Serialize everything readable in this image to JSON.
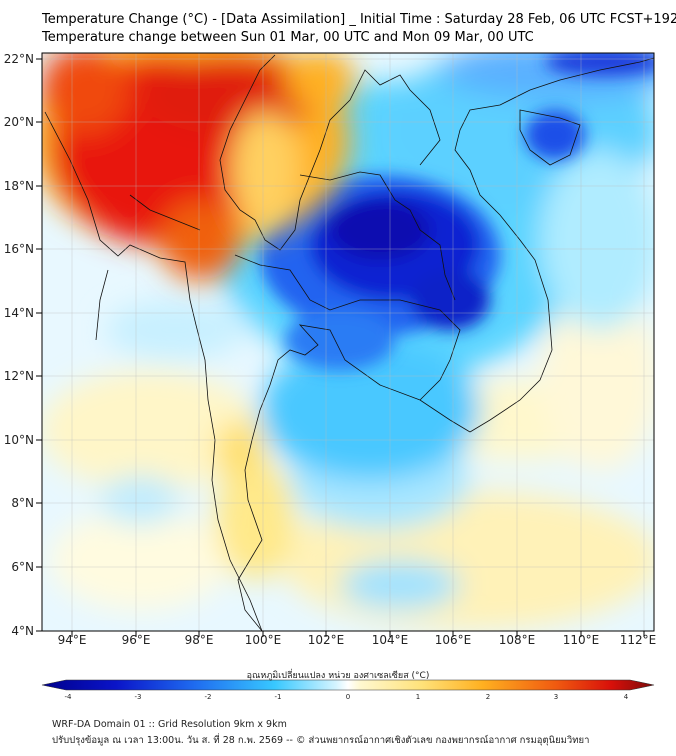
{
  "header": {
    "title_line1": "Temperature Change (°C) - [Data Assimilation] _ Initial Time : Saturday 28 Feb, 06 UTC FCST+192",
    "title_line2": "Temperature change between Sun 01 Mar, 00 UTC and Mon 09 Mar, 00 UTC"
  },
  "map": {
    "lat_labels": [
      "22°N",
      "20°N",
      "18°N",
      "16°N",
      "14°N",
      "12°N",
      "10°N",
      "8°N",
      "6°N",
      "4°N"
    ],
    "lon_labels": [
      "94°E",
      "96°E",
      "98°E",
      "100°E",
      "102°E",
      "104°E",
      "106°E",
      "108°E",
      "110°E",
      "112°E"
    ]
  },
  "colorbar": {
    "title": "อุณหภูมิเปลี่ยนแปลง หน่วย องศาเซลเซียส (°C)",
    "ticks": [
      "-4",
      "-3",
      "-2",
      "-1",
      "0",
      "1",
      "2",
      "3",
      "4"
    ]
  },
  "footer": {
    "line1": "WRF-DA Domain 01 :: Grid Resolution 9km x 9km",
    "line2": "ปรับปรุงข้อมูล ณ เวลา 13:00น. วัน ส. ที่ 28 ก.พ. 2569 -- © ส่วนพยากรณ์อากาศเชิงตัวเลข กองพยากรณ์อากาศ กรมอุตุนิยมวิทยา"
  },
  "colors": {
    "hot": "#e8140a",
    "warm": "#ffd24a",
    "neutral": "#eef8ff",
    "cool": "#38c8ff",
    "cold": "#0a14c8",
    "coldest": "#00008c"
  }
}
